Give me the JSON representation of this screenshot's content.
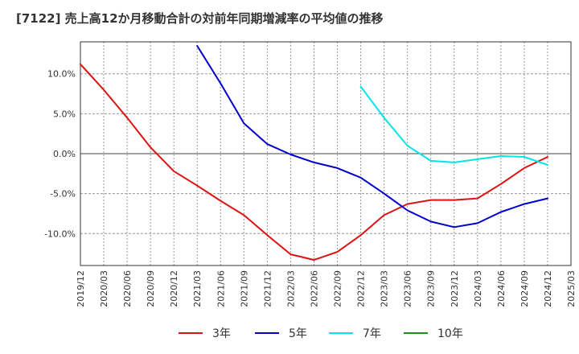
{
  "chart_data": {
    "type": "line",
    "title": "[7122]  売上高12か月移動合計の対前年同期増減率の平均値の推移",
    "xlabel": "",
    "ylabel": "",
    "x_ticks": [
      "2019/12",
      "2020/03",
      "2020/06",
      "2020/09",
      "2020/12",
      "2021/03",
      "2021/06",
      "2021/09",
      "2021/12",
      "2022/03",
      "2022/06",
      "2022/09",
      "2022/12",
      "2023/03",
      "2023/06",
      "2023/09",
      "2023/12",
      "2024/03",
      "2024/06",
      "2024/09",
      "2024/12",
      "2025/03"
    ],
    "y_ticks": [
      10,
      5,
      0,
      -5,
      -10
    ],
    "y_tick_labels": [
      "10.0%",
      "5.0%",
      "0.0%",
      "-5.0%",
      "-10.0%"
    ],
    "ylim": [
      -14,
      14
    ],
    "grid": true,
    "legend_position": "bottom",
    "series": [
      {
        "name": "3年",
        "color": "#dd1111",
        "points": [
          [
            "2019/12",
            11.2
          ],
          [
            "2020/03",
            8.0
          ],
          [
            "2020/06",
            4.5
          ],
          [
            "2020/09",
            0.8
          ],
          [
            "2020/12",
            -2.2
          ],
          [
            "2021/03",
            -4.0
          ],
          [
            "2021/06",
            -5.9
          ],
          [
            "2021/09",
            -7.7
          ],
          [
            "2021/12",
            -10.2
          ],
          [
            "2022/03",
            -12.6
          ],
          [
            "2022/06",
            -13.3
          ],
          [
            "2022/09",
            -12.3
          ],
          [
            "2022/12",
            -10.2
          ],
          [
            "2023/03",
            -7.7
          ],
          [
            "2023/06",
            -6.3
          ],
          [
            "2023/09",
            -5.8
          ],
          [
            "2023/12",
            -5.8
          ],
          [
            "2024/03",
            -5.6
          ],
          [
            "2024/06",
            -3.8
          ],
          [
            "2024/09",
            -1.8
          ],
          [
            "2024/12",
            -0.4
          ]
        ]
      },
      {
        "name": "5年",
        "color": "#0000cc",
        "points": [
          [
            "2021/03",
            13.5
          ],
          [
            "2021/06",
            8.8
          ],
          [
            "2021/09",
            3.8
          ],
          [
            "2021/12",
            1.2
          ],
          [
            "2022/03",
            -0.1
          ],
          [
            "2022/06",
            -1.1
          ],
          [
            "2022/09",
            -1.8
          ],
          [
            "2022/12",
            -3.0
          ],
          [
            "2023/03",
            -5.0
          ],
          [
            "2023/06",
            -7.1
          ],
          [
            "2023/09",
            -8.5
          ],
          [
            "2023/12",
            -9.2
          ],
          [
            "2024/03",
            -8.7
          ],
          [
            "2024/06",
            -7.3
          ],
          [
            "2024/09",
            -6.3
          ],
          [
            "2024/12",
            -5.6
          ]
        ]
      },
      {
        "name": "7年",
        "color": "#00e5e5",
        "points": [
          [
            "2022/12",
            8.4
          ],
          [
            "2023/03",
            4.5
          ],
          [
            "2023/06",
            1.0
          ],
          [
            "2023/09",
            -0.9
          ],
          [
            "2023/12",
            -1.1
          ],
          [
            "2024/03",
            -0.7
          ],
          [
            "2024/06",
            -0.3
          ],
          [
            "2024/09",
            -0.4
          ],
          [
            "2024/12",
            -1.4
          ]
        ]
      },
      {
        "name": "10年",
        "color": "#228b22",
        "points": []
      }
    ]
  }
}
